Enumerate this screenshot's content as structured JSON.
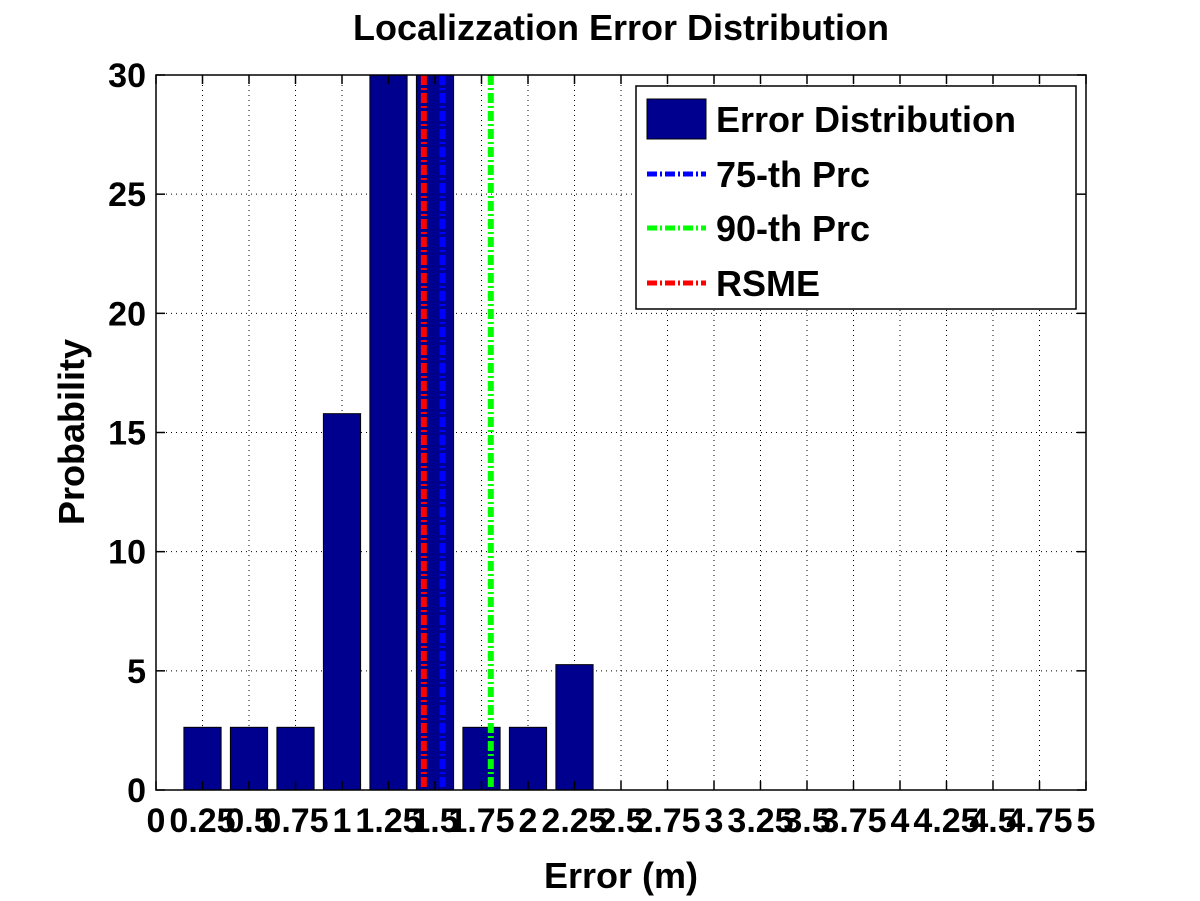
{
  "chart_data": {
    "type": "bar",
    "title": "Localizzation Error Distribution",
    "xlabel": "Error (m)",
    "ylabel": "Probability",
    "xlim": [
      0,
      5
    ],
    "ylim": [
      0,
      30
    ],
    "xticks": [
      0,
      0.25,
      0.5,
      0.75,
      1,
      1.25,
      1.5,
      1.75,
      2,
      2.25,
      2.5,
      2.75,
      3,
      3.25,
      3.5,
      3.75,
      4,
      4.25,
      4.5,
      4.75,
      5
    ],
    "xtick_labels": [
      "0",
      "0.25",
      "0.5",
      "0.75",
      "1",
      "1.25",
      "1.5",
      "1.75",
      "2",
      "2.25",
      "2.5",
      "2.75",
      "3",
      "3.25",
      "3.5",
      "3.75",
      "4",
      "4.25",
      "4.5",
      "4.75",
      "5"
    ],
    "yticks": [
      0,
      5,
      10,
      15,
      20,
      25,
      30
    ],
    "ytick_labels": [
      "0",
      "5",
      "10",
      "15",
      "20",
      "25",
      "30"
    ],
    "grid": true,
    "legend_position": "top-right",
    "bar_color": "#00008F",
    "series": [
      {
        "name": "Error Distribution",
        "x": [
          0.25,
          0.5,
          0.75,
          1.0,
          1.25,
          1.5,
          1.75,
          2.0,
          2.25
        ],
        "values": [
          2.63,
          2.63,
          2.63,
          15.79,
          30,
          30,
          2.63,
          2.63,
          5.26
        ],
        "color": "#00008F"
      }
    ],
    "lines": [
      {
        "name": "75-th Prc",
        "x": 1.54,
        "color": "#0000FF"
      },
      {
        "name": "90-th Prc",
        "x": 1.8,
        "color": "#00FF00"
      },
      {
        "name": "RSME",
        "x": 1.44,
        "color": "#FF0000"
      }
    ]
  }
}
